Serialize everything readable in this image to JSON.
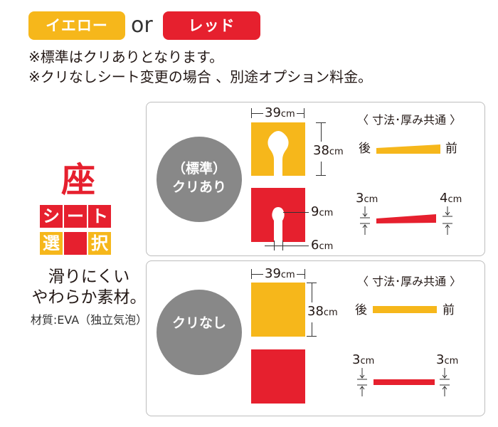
{
  "header": {
    "yellow_label": "イエロー",
    "or_label": "or",
    "red_label": "レッド",
    "note1": "※標準はクリありとなります。",
    "note2": "※クリなしシート変更の場合 、別途オプション料金。"
  },
  "sidebar": {
    "big_char": "座",
    "tiles": [
      "シ",
      "ー",
      "ト",
      "選",
      "択"
    ],
    "desc_line1": "滑りにくい",
    "desc_line2": "やわらか素材。",
    "material": "材質:EVA（独立気泡）"
  },
  "cards": [
    {
      "circle_line1": "（標準）",
      "circle_line2": "クリあり",
      "width_value": "39",
      "depth_value": "38",
      "cutout_value": "9",
      "gap_value": "6",
      "unit": "cm",
      "common_label": "〈 寸法･厚み共通 〉",
      "back_label": "後",
      "front_label": "前",
      "thick_back_value": "3",
      "thick_front_value": "4"
    },
    {
      "circle_line1": "",
      "circle_line2": "クリなし",
      "width_value": "39",
      "depth_value": "38",
      "unit": "cm",
      "common_label": "〈 寸法･厚み共通 〉",
      "back_label": "後",
      "front_label": "前",
      "thick_back_value": "3",
      "thick_front_value": "3"
    }
  ],
  "colors": {
    "yellow": "#f6b71b",
    "red": "#e6202e",
    "gray": "#888888"
  }
}
